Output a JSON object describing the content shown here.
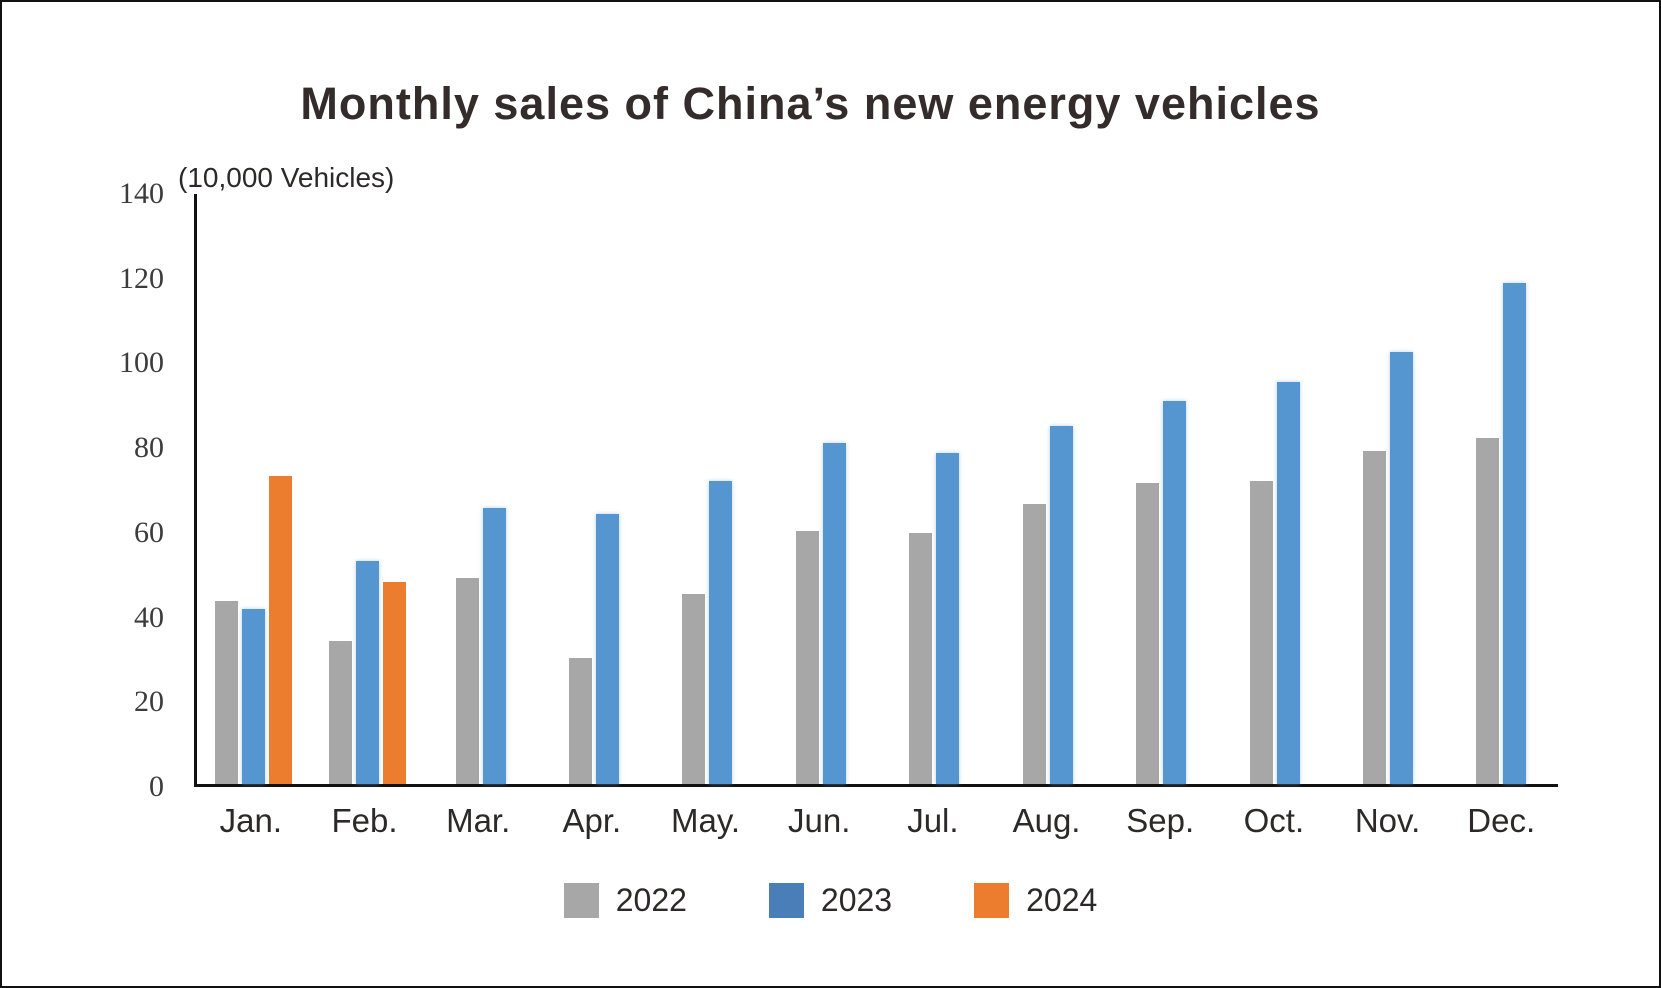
{
  "chart": {
    "title": "Monthly sales of China’s new energy vehicles",
    "unit_label": "(10,000 Vehicles)"
  },
  "chart_data": {
    "type": "bar",
    "title": "Monthly sales of China’s new energy vehicles",
    "ylabel": "(10,000 Vehicles)",
    "categories": [
      "Jan.",
      "Feb.",
      "Mar.",
      "Apr.",
      "May.",
      "Jun.",
      "Jul.",
      "Aug.",
      "Sep.",
      "Oct.",
      "Nov.",
      "Dec."
    ],
    "series": [
      {
        "name": "2022",
        "color": "#a7a7a7",
        "values": [
          43.5,
          34,
          49,
          30,
          45,
          60,
          59.5,
          66.5,
          71.5,
          72,
          79,
          82
        ]
      },
      {
        "name": "2023",
        "color": "#5696d0",
        "values": [
          41.5,
          53,
          65.5,
          64,
          72,
          81,
          78.5,
          85,
          91,
          95.5,
          102.5,
          119
        ]
      },
      {
        "name": "2024",
        "color": "#ec7d2e",
        "values": [
          73,
          48,
          null,
          null,
          null,
          null,
          null,
          null,
          null,
          null,
          null,
          null
        ]
      }
    ],
    "y_axis": {
      "min": 0,
      "max": 140,
      "tick_step": 20,
      "ticks": [
        0,
        20,
        40,
        60,
        80,
        100,
        120,
        140
      ]
    },
    "grid": false,
    "legend_position": "bottom"
  },
  "legend": {
    "items": [
      {
        "label": "2022",
        "color": "#a7a7a7"
      },
      {
        "label": "2023",
        "color": "#4a7eb8"
      },
      {
        "label": "2024",
        "color": "#ec7d2e"
      }
    ]
  },
  "colors": {
    "axis": "#111111",
    "tick_text": "#3c3c3c",
    "text": "#2e2929",
    "background": "#ffffff"
  }
}
